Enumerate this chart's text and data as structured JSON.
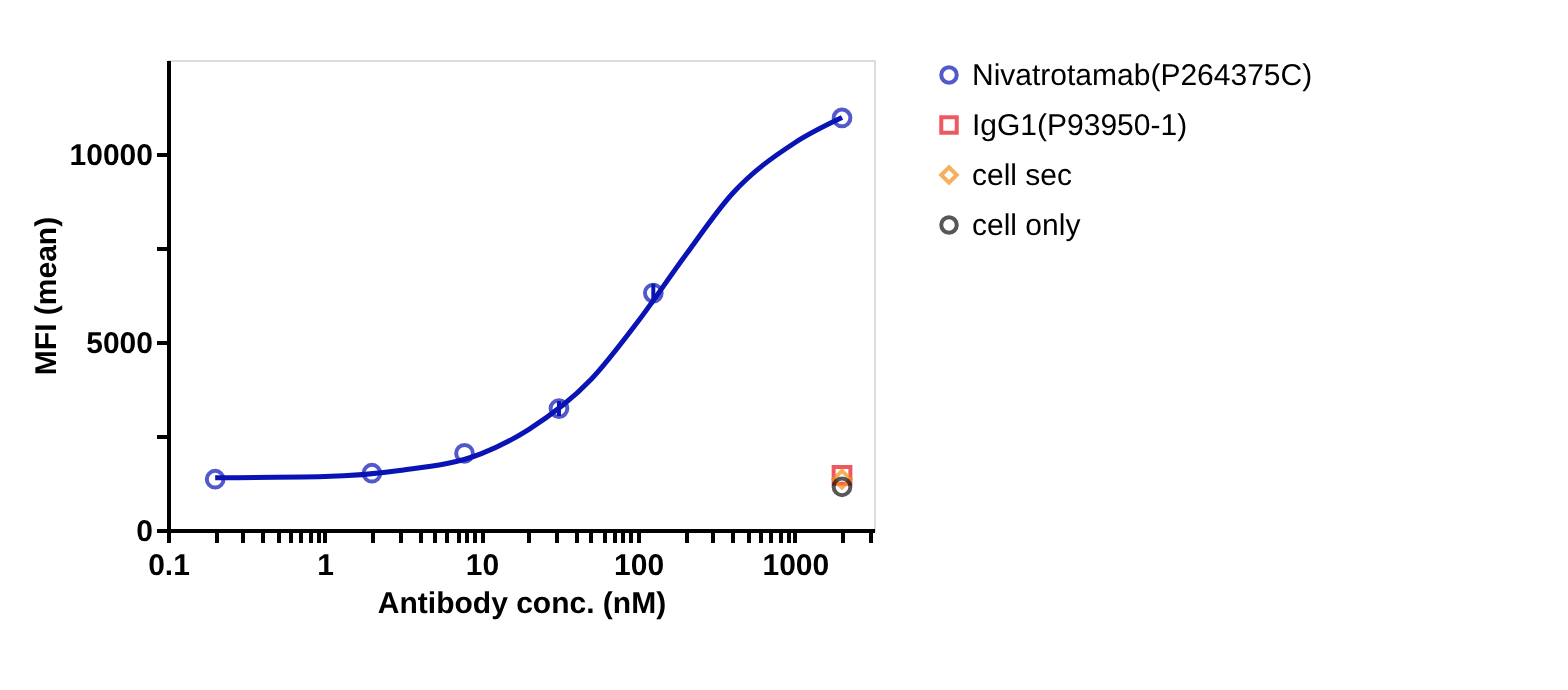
{
  "chart_data": {
    "type": "scatter",
    "xlabel": "Antibody conc. (nM)",
    "ylabel": "MFI (mean)",
    "log": "x",
    "legend": "right",
    "line_style": "solid",
    "xlim": [
      0.1,
      3200
    ],
    "ylim": [
      0,
      12500
    ],
    "xticks": [
      0.1,
      {
        "value": 0.2,
        "label": null
      },
      {
        "value": 0.3,
        "label": null
      },
      {
        "value": 0.4,
        "label": null
      },
      {
        "value": 0.5,
        "label": null
      },
      {
        "value": 0.6,
        "label": null
      },
      {
        "value": 0.7,
        "label": null
      },
      {
        "value": 0.8,
        "label": null
      },
      {
        "value": 0.9,
        "label": null
      },
      1,
      {
        "value": 2,
        "label": null
      },
      {
        "value": 3,
        "label": null
      },
      {
        "value": 4,
        "label": null
      },
      {
        "value": 5,
        "label": null
      },
      {
        "value": 6,
        "label": null
      },
      {
        "value": 7,
        "label": null
      },
      {
        "value": 8,
        "label": null
      },
      {
        "value": 9,
        "label": null
      },
      10,
      {
        "value": 20,
        "label": null
      },
      {
        "value": 30,
        "label": null
      },
      {
        "value": 40,
        "label": null
      },
      {
        "value": 50,
        "label": null
      },
      {
        "value": 60,
        "label": null
      },
      {
        "value": 70,
        "label": null
      },
      {
        "value": 80,
        "label": null
      },
      {
        "value": 90,
        "label": null
      },
      100,
      {
        "value": 200,
        "label": null
      },
      {
        "value": 300,
        "label": null
      },
      {
        "value": 400,
        "label": null
      },
      {
        "value": 500,
        "label": null
      },
      {
        "value": 600,
        "label": null
      },
      {
        "value": 700,
        "label": null
      },
      {
        "value": 800,
        "label": null
      },
      {
        "value": 900,
        "label": null
      },
      1000,
      {
        "value": 2000,
        "label": null
      },
      {
        "value": 3000,
        "label": null
      }
    ],
    "yticks": [
      0,
      {
        "value": 2500,
        "label": null
      },
      5000,
      {
        "value": 7500,
        "label": null
      },
      10000
    ],
    "series": [
      {
        "type": "line",
        "color": "#0a14b4",
        "x": [
          0.2,
          1,
          3,
          10,
          20,
          50,
          100,
          200,
          400,
          1000,
          2000
        ],
        "values": [
          1390,
          1420,
          1580,
          2030,
          2670,
          4000,
          5550,
          7300,
          8950,
          10300,
          10970
        ]
      },
      {
        "name": "Nivatrotamab(P264375C)",
        "color": "#0a14b4",
        "marker": "circle",
        "x": [
          0.2,
          2,
          7.8,
          31.25,
          125,
          2000
        ],
        "values": [
          1350,
          1510,
          2040,
          3230,
          6300,
          10960
        ],
        "errors": [
          null,
          null,
          null,
          200,
          250,
          null
        ]
      },
      {
        "name": "IgG1(P93950-1)",
        "color": "#e8141e",
        "marker": "square",
        "x": [
          2000
        ],
        "values": [
          1450
        ]
      },
      {
        "name": "cell sec",
        "color": "#f39019",
        "marker": "diamond",
        "x": [
          2000
        ],
        "values": [
          1350
        ]
      },
      {
        "name": "cell only",
        "color": "#111111",
        "marker": "circle",
        "x": [
          2000
        ],
        "values": [
          1150
        ]
      }
    ]
  }
}
